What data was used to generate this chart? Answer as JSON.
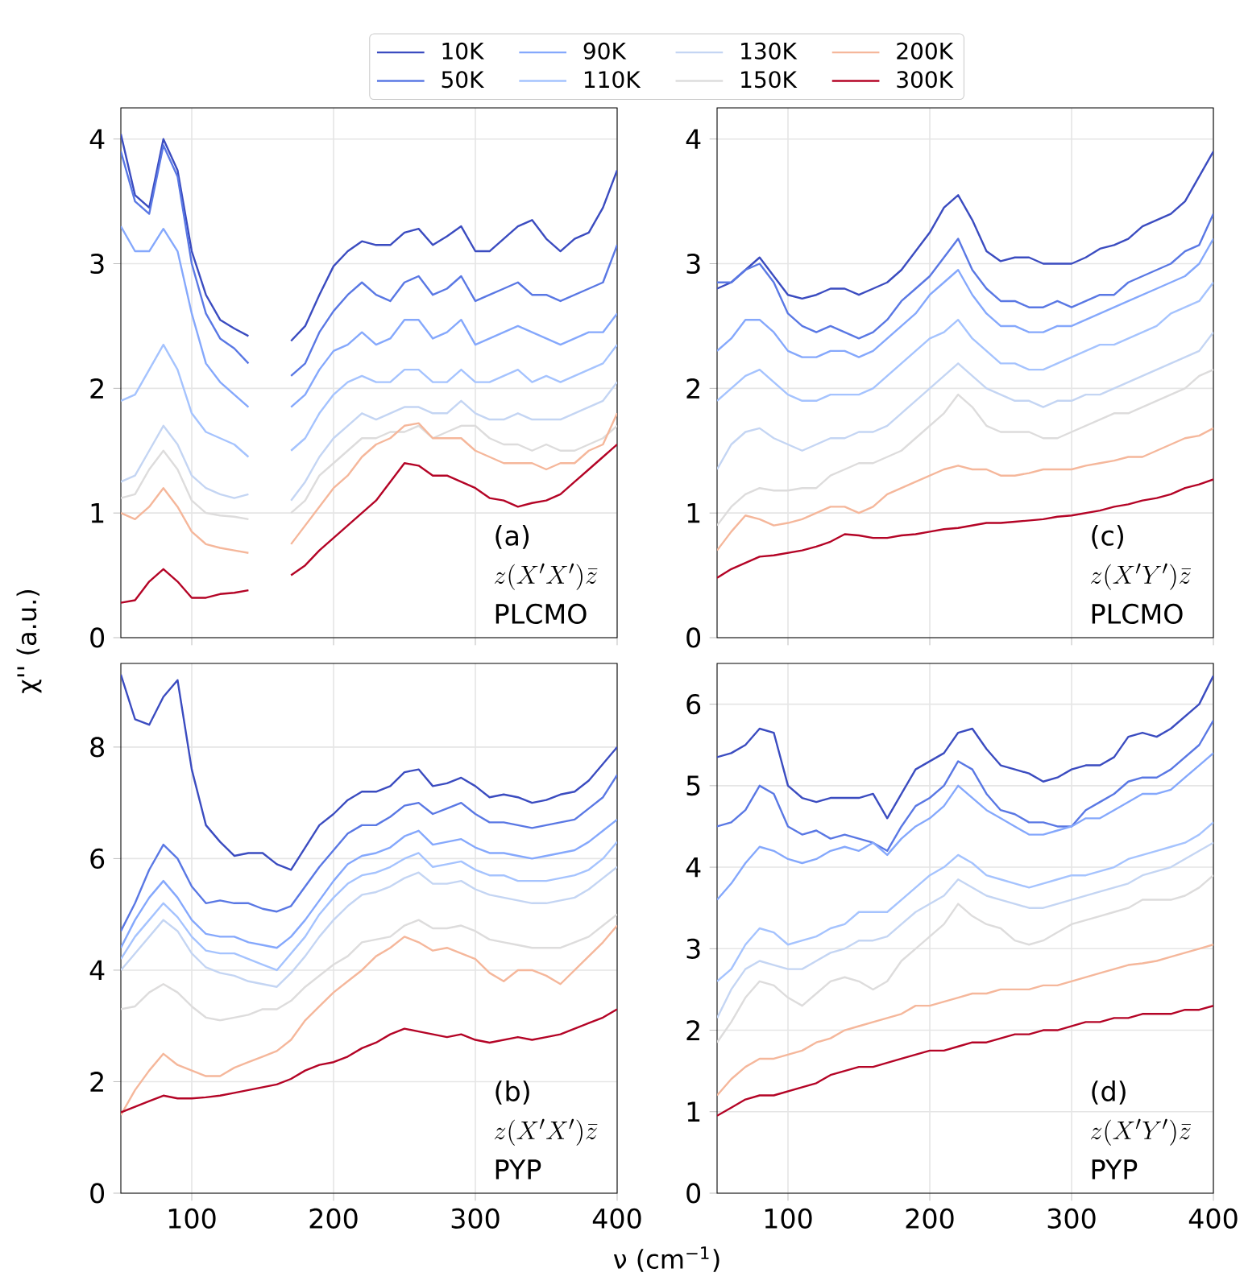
{
  "chart_data": [
    {
      "type": "line",
      "ylabel": "χ'' (a.u.)",
      "legend": "top",
      "grid": true,
      "tick_labels": "y",
      "xlim": [
        50,
        400
      ],
      "xticks": [
        100,
        200,
        300,
        400
      ],
      "ylim": [
        0,
        4.25
      ],
      "yticks": [
        0,
        1,
        2,
        3,
        4
      ],
      "annotations": [
        "(a)",
        "z(X'X')\\bar{z}",
        "PLCMO"
      ],
      "x": [
        50,
        60,
        70,
        80,
        90,
        100,
        110,
        120,
        130,
        140,
        150,
        160,
        170,
        180,
        190,
        200,
        210,
        220,
        230,
        240,
        250,
        260,
        270,
        280,
        290,
        300,
        310,
        320,
        330,
        340,
        350,
        360,
        370,
        380,
        390,
        400
      ],
      "series": [
        {
          "name": "10K",
          "color": "#3b4cc0",
          "values": [
            4.04,
            3.55,
            3.45,
            4.0,
            3.75,
            3.1,
            2.75,
            2.55,
            2.48,
            2.42,
            null,
            null,
            2.38,
            2.5,
            2.75,
            2.98,
            3.1,
            3.18,
            3.15,
            3.15,
            3.25,
            3.28,
            3.15,
            3.22,
            3.3,
            3.1,
            3.1,
            3.2,
            3.3,
            3.35,
            3.2,
            3.1,
            3.2,
            3.25,
            3.45,
            3.75
          ]
        },
        {
          "name": "50K",
          "color": "#5a78e4",
          "values": [
            3.9,
            3.5,
            3.4,
            3.95,
            3.7,
            3.0,
            2.6,
            2.4,
            2.32,
            2.2,
            null,
            null,
            2.1,
            2.2,
            2.45,
            2.62,
            2.75,
            2.85,
            2.75,
            2.7,
            2.85,
            2.9,
            2.75,
            2.8,
            2.9,
            2.7,
            2.75,
            2.8,
            2.85,
            2.75,
            2.75,
            2.7,
            2.75,
            2.8,
            2.85,
            3.15
          ]
        },
        {
          "name": "90K",
          "color": "#85a8fc",
          "values": [
            3.3,
            3.1,
            3.1,
            3.28,
            3.1,
            2.6,
            2.2,
            2.05,
            1.95,
            1.85,
            null,
            null,
            1.85,
            1.95,
            2.15,
            2.3,
            2.35,
            2.45,
            2.35,
            2.4,
            2.55,
            2.55,
            2.4,
            2.45,
            2.55,
            2.35,
            2.4,
            2.45,
            2.5,
            2.45,
            2.4,
            2.35,
            2.4,
            2.45,
            2.45,
            2.6
          ]
        },
        {
          "name": "110K",
          "color": "#a5c3fe",
          "values": [
            1.9,
            1.95,
            2.15,
            2.35,
            2.15,
            1.8,
            1.65,
            1.6,
            1.55,
            1.45,
            null,
            null,
            1.5,
            1.6,
            1.8,
            1.95,
            2.05,
            2.1,
            2.05,
            2.05,
            2.15,
            2.15,
            2.05,
            2.05,
            2.15,
            2.05,
            2.05,
            2.1,
            2.15,
            2.05,
            2.1,
            2.05,
            2.1,
            2.15,
            2.2,
            2.35
          ]
        },
        {
          "name": "130K",
          "color": "#c4d5f3",
          "values": [
            1.25,
            1.3,
            1.5,
            1.7,
            1.55,
            1.3,
            1.2,
            1.15,
            1.12,
            1.15,
            null,
            null,
            1.1,
            1.25,
            1.45,
            1.6,
            1.7,
            1.8,
            1.75,
            1.8,
            1.85,
            1.85,
            1.8,
            1.8,
            1.9,
            1.8,
            1.75,
            1.75,
            1.8,
            1.75,
            1.75,
            1.75,
            1.8,
            1.85,
            1.9,
            2.05
          ]
        },
        {
          "name": "150K",
          "color": "#dddcdc",
          "values": [
            1.12,
            1.15,
            1.35,
            1.5,
            1.35,
            1.1,
            1.0,
            0.98,
            0.97,
            0.95,
            null,
            null,
            1.0,
            1.1,
            1.3,
            1.4,
            1.5,
            1.6,
            1.6,
            1.65,
            1.65,
            1.7,
            1.6,
            1.65,
            1.7,
            1.7,
            1.6,
            1.55,
            1.55,
            1.5,
            1.55,
            1.5,
            1.5,
            1.55,
            1.6,
            1.7
          ]
        },
        {
          "name": "200K",
          "color": "#f5b79b",
          "values": [
            1.0,
            0.95,
            1.05,
            1.2,
            1.05,
            0.85,
            0.75,
            0.72,
            0.7,
            0.68,
            null,
            null,
            0.75,
            0.9,
            1.05,
            1.2,
            1.3,
            1.45,
            1.55,
            1.6,
            1.7,
            1.72,
            1.6,
            1.6,
            1.6,
            1.5,
            1.45,
            1.4,
            1.4,
            1.4,
            1.35,
            1.4,
            1.4,
            1.5,
            1.55,
            1.8
          ]
        },
        {
          "name": "300K",
          "color": "#b40426",
          "values": [
            0.28,
            0.3,
            0.45,
            0.55,
            0.45,
            0.32,
            0.32,
            0.35,
            0.36,
            0.38,
            null,
            null,
            0.5,
            0.58,
            0.7,
            0.8,
            0.9,
            1.0,
            1.1,
            1.25,
            1.4,
            1.38,
            1.3,
            1.3,
            1.25,
            1.2,
            1.12,
            1.1,
            1.05,
            1.08,
            1.1,
            1.15,
            1.25,
            1.35,
            1.45,
            1.55
          ]
        }
      ]
    },
    {
      "type": "line",
      "grid": true,
      "tick_labels": "y",
      "xlim": [
        50,
        400
      ],
      "xticks": [
        100,
        200,
        300,
        400
      ],
      "ylim": [
        0,
        4.25
      ],
      "yticks": [
        0,
        1,
        2,
        3,
        4
      ],
      "annotations": [
        "(c)",
        "z(X'Y')\\bar{z}",
        "PLCMO"
      ],
      "x": [
        50,
        60,
        70,
        80,
        90,
        100,
        110,
        120,
        130,
        140,
        150,
        160,
        170,
        180,
        190,
        200,
        210,
        220,
        230,
        240,
        250,
        260,
        270,
        280,
        290,
        300,
        310,
        320,
        330,
        340,
        350,
        360,
        370,
        380,
        390,
        400
      ],
      "series": [
        {
          "color": "#3b4cc0",
          "values": [
            2.8,
            2.85,
            2.95,
            3.05,
            2.9,
            2.75,
            2.72,
            2.75,
            2.8,
            2.8,
            2.75,
            2.8,
            2.85,
            2.95,
            3.1,
            3.25,
            3.45,
            3.55,
            3.35,
            3.1,
            3.02,
            3.05,
            3.05,
            3.0,
            3.0,
            3.0,
            3.05,
            3.12,
            3.15,
            3.2,
            3.3,
            3.35,
            3.4,
            3.5,
            3.7,
            3.9
          ]
        },
        {
          "color": "#5a78e4",
          "values": [
            2.85,
            2.85,
            2.95,
            3.0,
            2.85,
            2.6,
            2.5,
            2.45,
            2.5,
            2.45,
            2.4,
            2.45,
            2.55,
            2.7,
            2.8,
            2.9,
            3.05,
            3.2,
            2.95,
            2.8,
            2.7,
            2.7,
            2.65,
            2.65,
            2.7,
            2.65,
            2.7,
            2.75,
            2.75,
            2.85,
            2.9,
            2.95,
            3.0,
            3.1,
            3.15,
            3.4
          ]
        },
        {
          "color": "#85a8fc",
          "values": [
            2.3,
            2.4,
            2.55,
            2.55,
            2.45,
            2.3,
            2.25,
            2.25,
            2.3,
            2.3,
            2.25,
            2.3,
            2.4,
            2.5,
            2.6,
            2.75,
            2.85,
            2.95,
            2.75,
            2.6,
            2.5,
            2.5,
            2.45,
            2.45,
            2.5,
            2.5,
            2.55,
            2.6,
            2.65,
            2.7,
            2.75,
            2.8,
            2.85,
            2.9,
            3.0,
            3.2
          ]
        },
        {
          "color": "#a5c3fe",
          "values": [
            1.9,
            2.0,
            2.1,
            2.15,
            2.05,
            1.95,
            1.9,
            1.9,
            1.95,
            1.95,
            1.95,
            2.0,
            2.1,
            2.2,
            2.3,
            2.4,
            2.45,
            2.55,
            2.4,
            2.3,
            2.2,
            2.2,
            2.15,
            2.15,
            2.2,
            2.25,
            2.3,
            2.35,
            2.35,
            2.4,
            2.45,
            2.5,
            2.6,
            2.65,
            2.7,
            2.85
          ]
        },
        {
          "color": "#c4d5f3",
          "values": [
            1.35,
            1.55,
            1.65,
            1.68,
            1.6,
            1.55,
            1.5,
            1.55,
            1.6,
            1.6,
            1.65,
            1.65,
            1.7,
            1.8,
            1.9,
            2.0,
            2.1,
            2.2,
            2.1,
            2.0,
            1.95,
            1.9,
            1.9,
            1.85,
            1.9,
            1.9,
            1.95,
            1.95,
            2.0,
            2.05,
            2.1,
            2.15,
            2.2,
            2.25,
            2.3,
            2.45
          ]
        },
        {
          "color": "#dddcdc",
          "values": [
            0.9,
            1.05,
            1.15,
            1.2,
            1.18,
            1.18,
            1.2,
            1.2,
            1.3,
            1.35,
            1.4,
            1.4,
            1.45,
            1.5,
            1.6,
            1.7,
            1.8,
            1.95,
            1.85,
            1.7,
            1.65,
            1.65,
            1.65,
            1.6,
            1.6,
            1.65,
            1.7,
            1.75,
            1.8,
            1.8,
            1.85,
            1.9,
            1.95,
            2.0,
            2.1,
            2.15
          ]
        },
        {
          "color": "#f5b79b",
          "values": [
            0.7,
            0.85,
            0.98,
            0.95,
            0.9,
            0.92,
            0.95,
            1.0,
            1.05,
            1.05,
            1.0,
            1.05,
            1.15,
            1.2,
            1.25,
            1.3,
            1.35,
            1.38,
            1.35,
            1.35,
            1.3,
            1.3,
            1.32,
            1.35,
            1.35,
            1.35,
            1.38,
            1.4,
            1.42,
            1.45,
            1.45,
            1.5,
            1.55,
            1.6,
            1.62,
            1.68
          ]
        },
        {
          "color": "#b40426",
          "values": [
            0.48,
            0.55,
            0.6,
            0.65,
            0.66,
            0.68,
            0.7,
            0.73,
            0.77,
            0.83,
            0.82,
            0.8,
            0.8,
            0.82,
            0.83,
            0.85,
            0.87,
            0.88,
            0.9,
            0.92,
            0.92,
            0.93,
            0.94,
            0.95,
            0.97,
            0.98,
            1.0,
            1.02,
            1.05,
            1.07,
            1.1,
            1.12,
            1.15,
            1.2,
            1.23,
            1.27
          ]
        }
      ]
    },
    {
      "type": "line",
      "xlabel": "ν (cm$^{−1}$)",
      "grid": true,
      "xlim": [
        50,
        400
      ],
      "xticks": [
        100,
        200,
        300,
        400
      ],
      "ylim": [
        0,
        9.5
      ],
      "yticks": [
        0,
        2,
        4,
        6,
        8
      ],
      "annotations": [
        "(b)",
        "z(X'X')\\bar{z}",
        "PYP"
      ],
      "x": [
        50,
        60,
        70,
        80,
        90,
        100,
        110,
        120,
        130,
        140,
        150,
        160,
        170,
        180,
        190,
        200,
        210,
        220,
        230,
        240,
        250,
        260,
        270,
        280,
        290,
        300,
        310,
        320,
        330,
        340,
        350,
        360,
        370,
        380,
        390,
        400
      ],
      "series": [
        {
          "color": "#3b4cc0",
          "values": [
            9.3,
            8.5,
            8.4,
            8.9,
            9.2,
            7.6,
            6.6,
            6.3,
            6.05,
            6.1,
            6.1,
            5.9,
            5.8,
            6.2,
            6.6,
            6.8,
            7.05,
            7.2,
            7.2,
            7.3,
            7.55,
            7.6,
            7.3,
            7.35,
            7.45,
            7.3,
            7.1,
            7.15,
            7.1,
            7.0,
            7.05,
            7.15,
            7.2,
            7.4,
            7.7,
            8.0
          ]
        },
        {
          "color": "#5a78e4",
          "values": [
            4.7,
            5.2,
            5.8,
            6.25,
            6.0,
            5.5,
            5.2,
            5.25,
            5.2,
            5.2,
            5.1,
            5.05,
            5.15,
            5.5,
            5.85,
            6.15,
            6.45,
            6.6,
            6.6,
            6.75,
            6.95,
            7.0,
            6.8,
            6.9,
            7.0,
            6.8,
            6.65,
            6.65,
            6.6,
            6.55,
            6.6,
            6.65,
            6.7,
            6.9,
            7.1,
            7.5
          ]
        },
        {
          "color": "#85a8fc",
          "values": [
            4.4,
            4.9,
            5.3,
            5.6,
            5.3,
            4.9,
            4.65,
            4.6,
            4.6,
            4.5,
            4.45,
            4.4,
            4.6,
            4.9,
            5.25,
            5.6,
            5.9,
            6.05,
            6.1,
            6.2,
            6.4,
            6.5,
            6.25,
            6.3,
            6.35,
            6.2,
            6.1,
            6.1,
            6.05,
            6.0,
            6.05,
            6.1,
            6.15,
            6.3,
            6.5,
            6.7
          ]
        },
        {
          "color": "#a5c3fe",
          "values": [
            4.2,
            4.6,
            4.9,
            5.2,
            4.95,
            4.6,
            4.35,
            4.3,
            4.3,
            4.2,
            4.1,
            4.0,
            4.3,
            4.6,
            5.0,
            5.3,
            5.55,
            5.7,
            5.75,
            5.85,
            6.0,
            6.1,
            5.85,
            5.9,
            5.95,
            5.8,
            5.7,
            5.7,
            5.6,
            5.6,
            5.6,
            5.65,
            5.7,
            5.8,
            6.0,
            6.3
          ]
        },
        {
          "color": "#c4d5f3",
          "values": [
            4.0,
            4.3,
            4.6,
            4.9,
            4.7,
            4.3,
            4.05,
            3.95,
            3.9,
            3.8,
            3.75,
            3.7,
            3.95,
            4.25,
            4.6,
            4.9,
            5.15,
            5.35,
            5.4,
            5.5,
            5.65,
            5.75,
            5.55,
            5.55,
            5.6,
            5.45,
            5.35,
            5.3,
            5.25,
            5.2,
            5.2,
            5.25,
            5.3,
            5.45,
            5.65,
            5.85
          ]
        },
        {
          "color": "#dddcdc",
          "values": [
            3.3,
            3.35,
            3.6,
            3.75,
            3.6,
            3.35,
            3.15,
            3.1,
            3.15,
            3.2,
            3.3,
            3.3,
            3.45,
            3.7,
            3.9,
            4.1,
            4.25,
            4.5,
            4.55,
            4.6,
            4.8,
            4.9,
            4.75,
            4.75,
            4.8,
            4.7,
            4.55,
            4.5,
            4.45,
            4.4,
            4.4,
            4.4,
            4.5,
            4.6,
            4.8,
            5.0
          ]
        },
        {
          "color": "#f5b79b",
          "values": [
            1.4,
            1.85,
            2.2,
            2.5,
            2.3,
            2.2,
            2.1,
            2.1,
            2.25,
            2.35,
            2.45,
            2.55,
            2.75,
            3.1,
            3.35,
            3.6,
            3.8,
            4.0,
            4.25,
            4.4,
            4.6,
            4.5,
            4.35,
            4.4,
            4.3,
            4.2,
            3.95,
            3.8,
            4.0,
            4.0,
            3.9,
            3.75,
            4.0,
            4.25,
            4.5,
            4.8
          ]
        },
        {
          "color": "#b40426",
          "values": [
            1.45,
            1.55,
            1.65,
            1.75,
            1.7,
            1.7,
            1.72,
            1.75,
            1.8,
            1.85,
            1.9,
            1.95,
            2.05,
            2.2,
            2.3,
            2.35,
            2.45,
            2.6,
            2.7,
            2.85,
            2.95,
            2.9,
            2.85,
            2.8,
            2.85,
            2.75,
            2.7,
            2.75,
            2.8,
            2.75,
            2.8,
            2.85,
            2.95,
            3.05,
            3.15,
            3.3
          ]
        }
      ]
    },
    {
      "type": "line",
      "grid": true,
      "xlim": [
        50,
        400
      ],
      "xticks": [
        100,
        200,
        300,
        400
      ],
      "ylim": [
        0,
        6.5
      ],
      "yticks": [
        0,
        1,
        2,
        3,
        4,
        5,
        6
      ],
      "annotations": [
        "(d)",
        "z(X'Y')\\bar{z}",
        "PYP"
      ],
      "x": [
        50,
        60,
        70,
        80,
        90,
        100,
        110,
        120,
        130,
        140,
        150,
        160,
        170,
        180,
        190,
        200,
        210,
        220,
        230,
        240,
        250,
        260,
        270,
        280,
        290,
        300,
        310,
        320,
        330,
        340,
        350,
        360,
        370,
        380,
        390,
        400
      ],
      "series": [
        {
          "color": "#3b4cc0",
          "values": [
            5.35,
            5.4,
            5.5,
            5.7,
            5.65,
            5.0,
            4.85,
            4.8,
            4.85,
            4.85,
            4.85,
            4.9,
            4.6,
            4.9,
            5.2,
            5.3,
            5.4,
            5.65,
            5.7,
            5.45,
            5.25,
            5.2,
            5.15,
            5.05,
            5.1,
            5.2,
            5.25,
            5.25,
            5.35,
            5.6,
            5.65,
            5.6,
            5.7,
            5.85,
            6.0,
            6.35
          ]
        },
        {
          "color": "#5a78e4",
          "values": [
            4.5,
            4.55,
            4.7,
            5.0,
            4.9,
            4.5,
            4.4,
            4.45,
            4.35,
            4.4,
            4.35,
            4.3,
            4.2,
            4.5,
            4.75,
            4.85,
            5.0,
            5.3,
            5.2,
            4.9,
            4.7,
            4.65,
            4.55,
            4.55,
            4.5,
            4.5,
            4.7,
            4.8,
            4.9,
            5.05,
            5.1,
            5.1,
            5.2,
            5.35,
            5.5,
            5.8
          ]
        },
        {
          "color": "#85a8fc",
          "values": [
            3.6,
            3.8,
            4.05,
            4.25,
            4.2,
            4.1,
            4.05,
            4.1,
            4.2,
            4.25,
            4.2,
            4.3,
            4.15,
            4.35,
            4.5,
            4.6,
            4.75,
            5.0,
            4.85,
            4.7,
            4.6,
            4.5,
            4.4,
            4.4,
            4.45,
            4.5,
            4.6,
            4.6,
            4.7,
            4.8,
            4.9,
            4.9,
            4.95,
            5.1,
            5.25,
            5.4
          ]
        },
        {
          "color": "#a5c3fe",
          "values": [
            2.6,
            2.75,
            3.05,
            3.25,
            3.2,
            3.05,
            3.1,
            3.15,
            3.25,
            3.3,
            3.45,
            3.45,
            3.45,
            3.6,
            3.75,
            3.9,
            4.0,
            4.15,
            4.05,
            3.9,
            3.85,
            3.8,
            3.75,
            3.8,
            3.85,
            3.9,
            3.9,
            3.95,
            4.0,
            4.1,
            4.15,
            4.2,
            4.25,
            4.3,
            4.4,
            4.55
          ]
        },
        {
          "color": "#c4d5f3",
          "values": [
            2.15,
            2.5,
            2.75,
            2.85,
            2.8,
            2.75,
            2.75,
            2.85,
            2.95,
            3.0,
            3.1,
            3.1,
            3.15,
            3.3,
            3.45,
            3.55,
            3.65,
            3.85,
            3.75,
            3.65,
            3.6,
            3.55,
            3.5,
            3.5,
            3.55,
            3.6,
            3.65,
            3.7,
            3.75,
            3.8,
            3.9,
            3.95,
            4.0,
            4.1,
            4.2,
            4.3
          ]
        },
        {
          "color": "#dddcdc",
          "values": [
            1.85,
            2.1,
            2.4,
            2.6,
            2.55,
            2.4,
            2.3,
            2.45,
            2.6,
            2.65,
            2.6,
            2.5,
            2.6,
            2.85,
            3.0,
            3.15,
            3.3,
            3.55,
            3.4,
            3.3,
            3.25,
            3.1,
            3.05,
            3.1,
            3.2,
            3.3,
            3.35,
            3.4,
            3.45,
            3.5,
            3.6,
            3.6,
            3.6,
            3.65,
            3.75,
            3.9
          ]
        },
        {
          "color": "#f5b79b",
          "values": [
            1.2,
            1.4,
            1.55,
            1.65,
            1.65,
            1.7,
            1.75,
            1.85,
            1.9,
            2.0,
            2.05,
            2.1,
            2.15,
            2.2,
            2.3,
            2.3,
            2.35,
            2.4,
            2.45,
            2.45,
            2.5,
            2.5,
            2.5,
            2.55,
            2.55,
            2.6,
            2.65,
            2.7,
            2.75,
            2.8,
            2.82,
            2.85,
            2.9,
            2.95,
            3.0,
            3.05
          ]
        },
        {
          "color": "#b40426",
          "values": [
            0.95,
            1.05,
            1.15,
            1.2,
            1.2,
            1.25,
            1.3,
            1.35,
            1.45,
            1.5,
            1.55,
            1.55,
            1.6,
            1.65,
            1.7,
            1.75,
            1.75,
            1.8,
            1.85,
            1.85,
            1.9,
            1.95,
            1.95,
            2.0,
            2.0,
            2.05,
            2.1,
            2.1,
            2.15,
            2.15,
            2.2,
            2.2,
            2.2,
            2.25,
            2.25,
            2.3
          ]
        }
      ]
    }
  ]
}
